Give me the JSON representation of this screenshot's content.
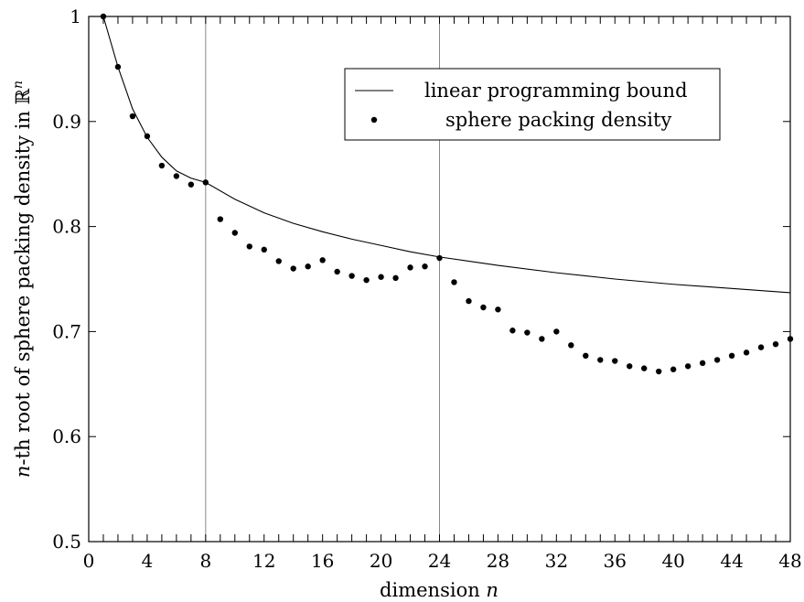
{
  "chart_data": {
    "type": "scatter",
    "xlabel": "dimension n",
    "ylabel": "n-th root of sphere packing density in ℝ^n",
    "xlim": [
      0,
      48
    ],
    "ylim": [
      0.5,
      1
    ],
    "xticks": [
      0,
      4,
      8,
      12,
      16,
      20,
      24,
      28,
      32,
      36,
      40,
      44,
      48
    ],
    "xtick_labels": [
      "0",
      "4",
      "8",
      "12",
      "16",
      "20",
      "24",
      "28",
      "32",
      "36",
      "40",
      "44",
      "48"
    ],
    "yticks": [
      0.5,
      0.6,
      0.7,
      0.8,
      0.9,
      1
    ],
    "ytick_labels": [
      "0.5",
      "0.6",
      "0.7",
      "0.8",
      "0.9",
      "1"
    ],
    "grid": false,
    "vertical_reference_lines": [
      8,
      24
    ],
    "legend": {
      "position": "top-right",
      "entries": [
        "linear programming bound",
        "sphere packing density"
      ]
    },
    "series": [
      {
        "name": "linear programming bound",
        "style": "line",
        "x": [
          1,
          2,
          3,
          4,
          5,
          6,
          7,
          8,
          10,
          12,
          14,
          16,
          18,
          20,
          22,
          24,
          28,
          32,
          36,
          40,
          44,
          48
        ],
        "y": [
          1.0,
          0.952,
          0.912,
          0.885,
          0.866,
          0.853,
          0.846,
          0.842,
          0.826,
          0.813,
          0.803,
          0.795,
          0.788,
          0.782,
          0.776,
          0.771,
          0.763,
          0.756,
          0.75,
          0.745,
          0.741,
          0.737
        ]
      },
      {
        "name": "sphere packing density",
        "style": "points",
        "x": [
          1,
          2,
          3,
          4,
          5,
          6,
          7,
          8,
          9,
          10,
          11,
          12,
          13,
          14,
          15,
          16,
          17,
          18,
          19,
          20,
          21,
          22,
          23,
          24,
          25,
          26,
          27,
          28,
          29,
          30,
          31,
          32,
          33,
          34,
          35,
          36,
          37,
          38,
          39,
          40,
          41,
          42,
          43,
          44,
          45,
          46,
          47,
          48
        ],
        "y": [
          1.0,
          0.952,
          0.905,
          0.886,
          0.858,
          0.848,
          0.84,
          0.842,
          0.807,
          0.794,
          0.781,
          0.778,
          0.767,
          0.76,
          0.762,
          0.768,
          0.757,
          0.753,
          0.749,
          0.752,
          0.751,
          0.761,
          0.762,
          0.77,
          0.747,
          0.729,
          0.723,
          0.721,
          0.701,
          0.699,
          0.693,
          0.7,
          0.687,
          0.677,
          0.673,
          0.672,
          0.667,
          0.665,
          0.662,
          0.664,
          0.667,
          0.67,
          0.673,
          0.677,
          0.68,
          0.685,
          0.688,
          0.693
        ]
      }
    ]
  }
}
